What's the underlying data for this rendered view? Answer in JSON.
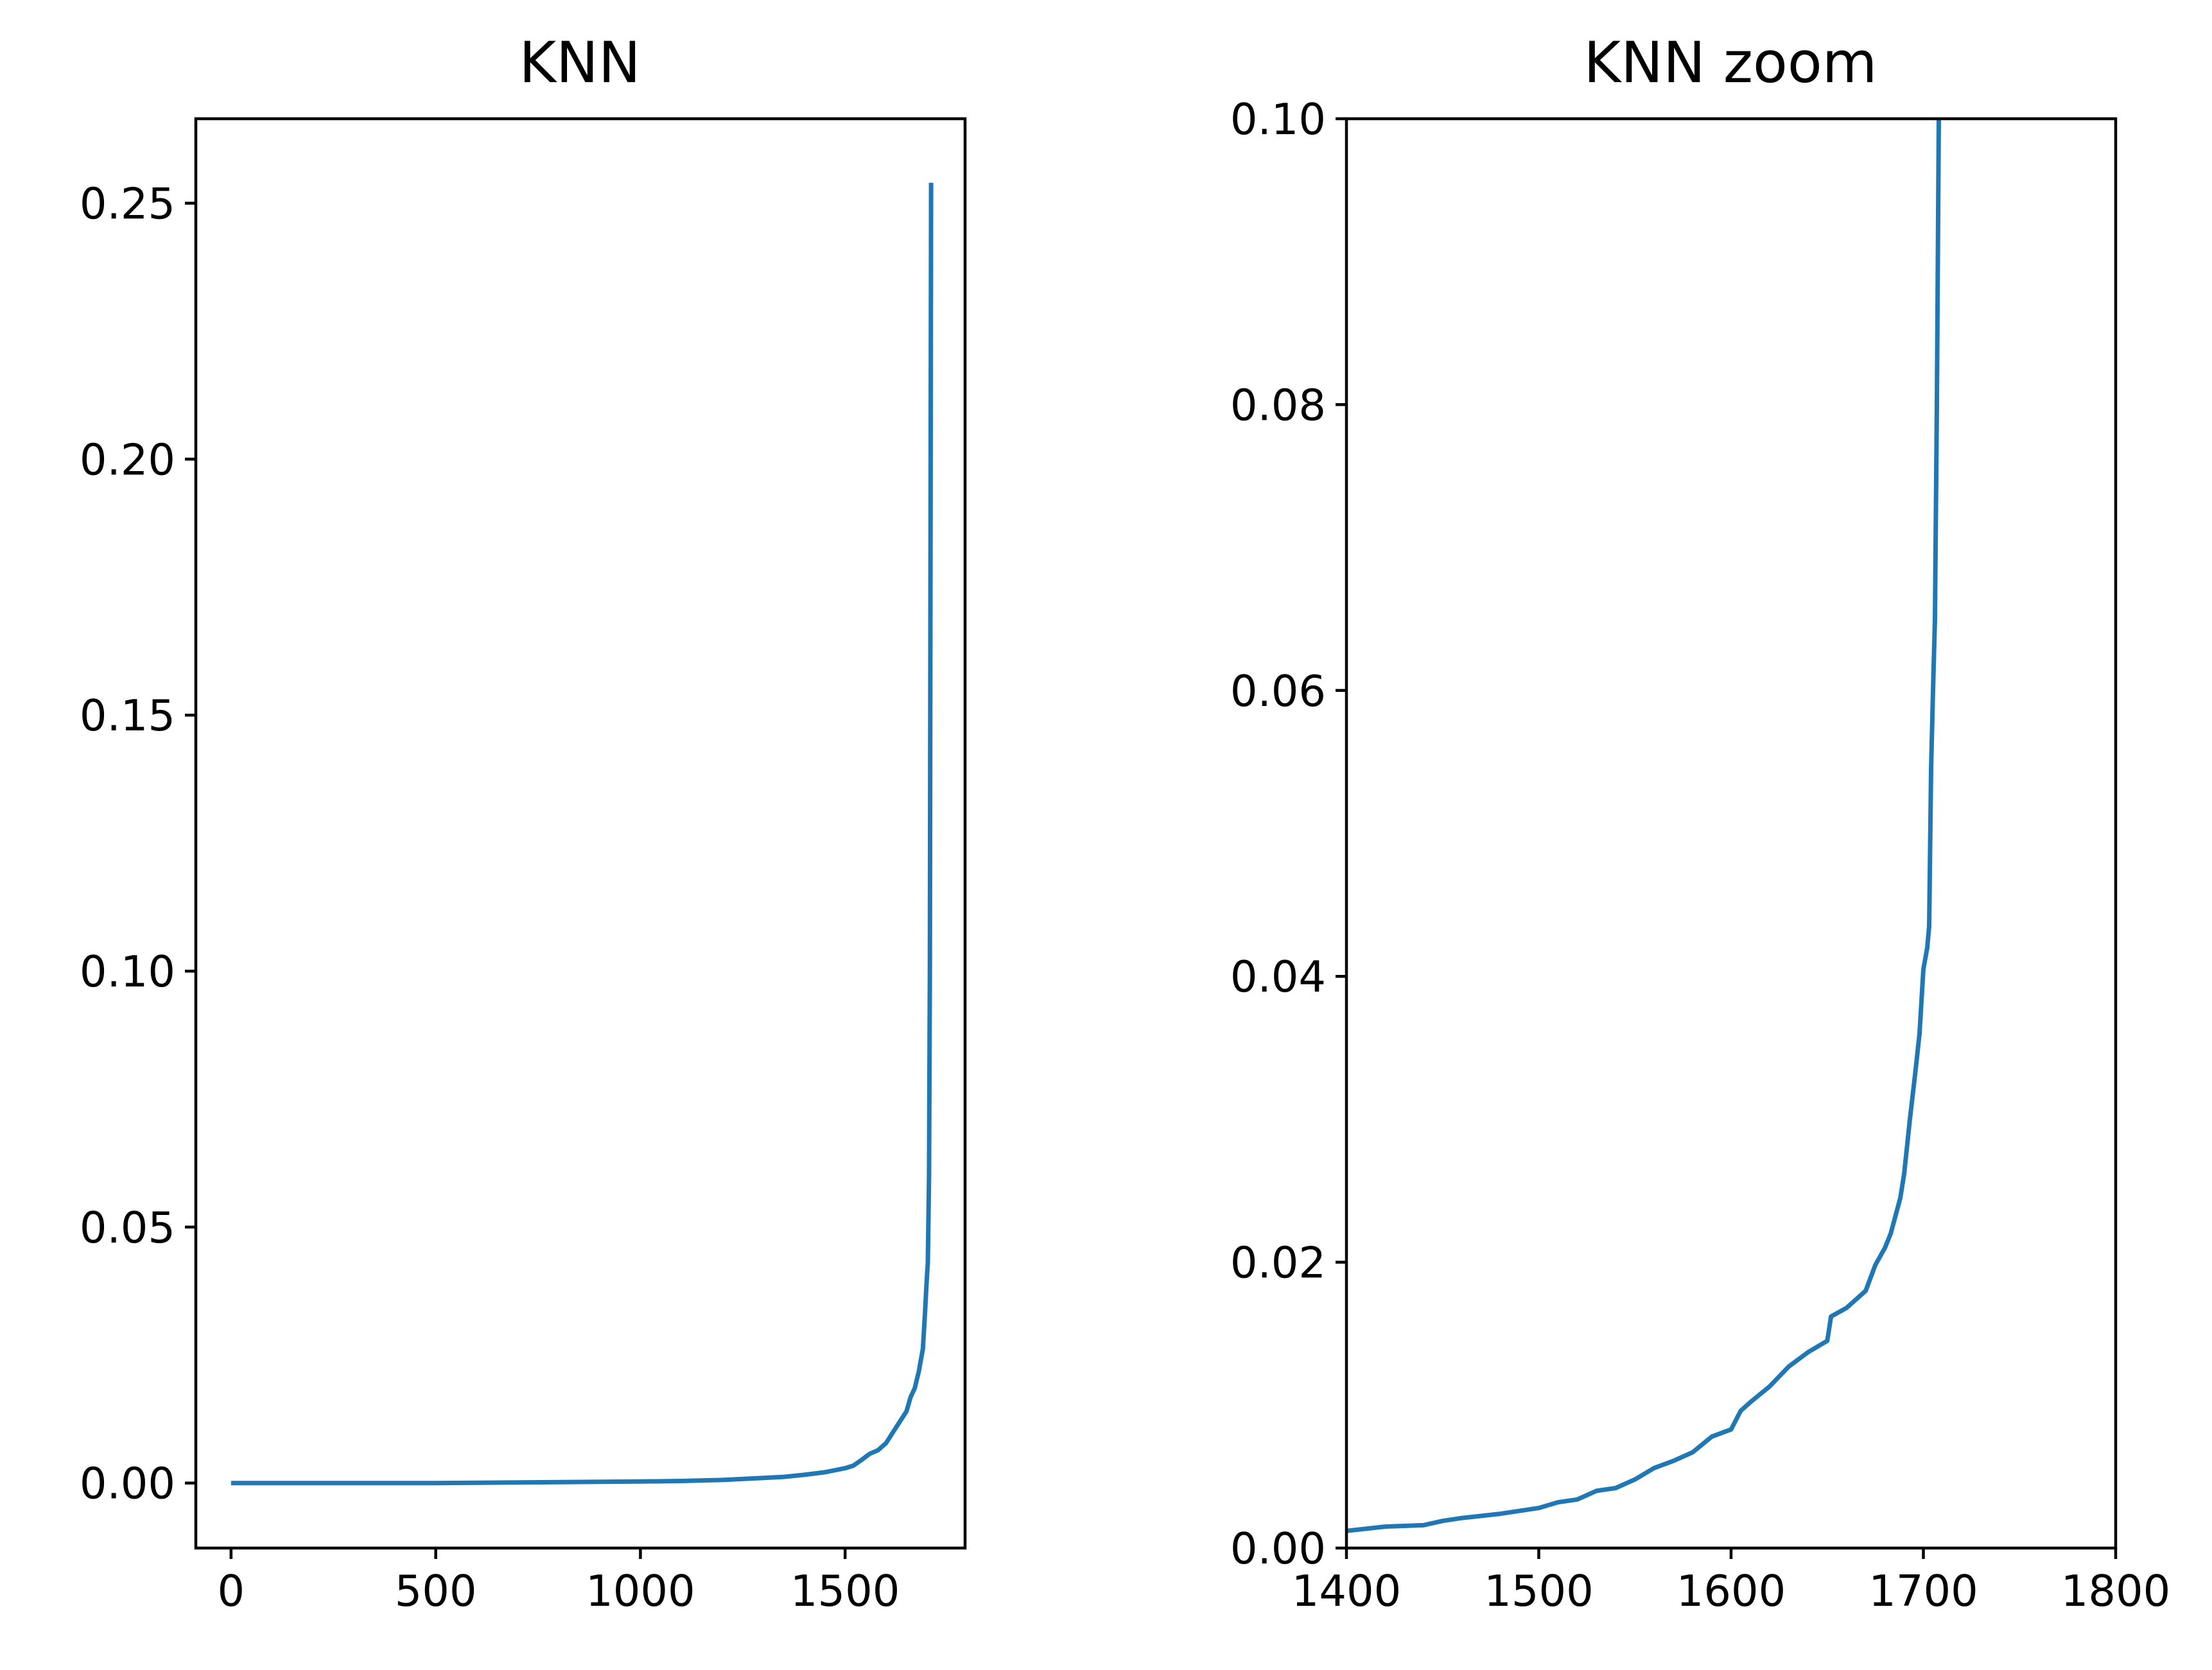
{
  "chart_data": [
    {
      "type": "line",
      "title": "KNN",
      "xlabel": "",
      "ylabel": "",
      "xlim": [
        -86,
        1793
      ],
      "ylim": [
        -0.0127,
        0.2665
      ],
      "x_ticks": [
        0,
        500,
        1000,
        1500
      ],
      "x_tick_labels": [
        "0",
        "500",
        "1000",
        "1500"
      ],
      "y_ticks": [
        0.0,
        0.05,
        0.1,
        0.15,
        0.2,
        0.25
      ],
      "y_tick_labels": [
        "0.00",
        "0.05",
        "0.10",
        "0.15",
        "0.20",
        "0.25"
      ],
      "grid": false,
      "color": "#1f77b4",
      "series": [
        {
          "x": [
            0,
            500,
            1000,
            1100,
            1200,
            1300,
            1350,
            1400,
            1450,
            1500,
            1520,
            1540,
            1560,
            1580,
            1600,
            1620,
            1640,
            1650,
            1660,
            1670,
            1680,
            1685,
            1690,
            1695,
            1698,
            1700,
            1702,
            1704,
            1705,
            1706,
            1707,
            1708,
            1709,
            1710
          ],
          "y": [
            0.0,
            0.0,
            0.0003,
            0.0004,
            0.0006,
            0.001,
            0.0012,
            0.0016,
            0.0021,
            0.0029,
            0.0034,
            0.0045,
            0.0057,
            0.0064,
            0.0078,
            0.0103,
            0.0128,
            0.014,
            0.0168,
            0.0185,
            0.0218,
            0.024,
            0.0262,
            0.033,
            0.0375,
            0.0405,
            0.043,
            0.0545,
            0.06,
            0.08,
            0.1,
            0.15,
            0.2,
            0.254
          ]
        }
      ]
    },
    {
      "type": "line",
      "title": "KNN zoom",
      "xlabel": "",
      "ylabel": "",
      "xlim": [
        1400,
        1800
      ],
      "ylim": [
        0.0,
        0.1
      ],
      "x_ticks": [
        1400,
        1500,
        1600,
        1700,
        1800
      ],
      "x_tick_labels": [
        "1400",
        "1500",
        "1600",
        "1700",
        "1800"
      ],
      "y_ticks": [
        0.0,
        0.02,
        0.04,
        0.06,
        0.08,
        0.1
      ],
      "y_tick_labels": [
        "0.00",
        "0.02",
        "0.04",
        "0.06",
        "0.08",
        "0.10"
      ],
      "grid": false,
      "color": "#1f77b4",
      "series": [
        {
          "x": [
            1400,
            1420,
            1440,
            1450,
            1460,
            1480,
            1500,
            1510,
            1520,
            1530,
            1540,
            1550,
            1560,
            1570,
            1580,
            1590,
            1600,
            1605,
            1610,
            1620,
            1630,
            1640,
            1650,
            1652,
            1660,
            1670,
            1675,
            1680,
            1683,
            1688,
            1690,
            1693,
            1696,
            1698,
            1700,
            1702,
            1703,
            1704,
            1705,
            1706,
            1707,
            1708
          ],
          "y": [
            0.0012,
            0.0015,
            0.0016,
            0.0019,
            0.0021,
            0.0024,
            0.0028,
            0.0032,
            0.0034,
            0.004,
            0.0042,
            0.0048,
            0.0056,
            0.0061,
            0.0067,
            0.0078,
            0.0083,
            0.0096,
            0.0102,
            0.0113,
            0.0127,
            0.0137,
            0.0145,
            0.0162,
            0.0168,
            0.018,
            0.0198,
            0.021,
            0.022,
            0.0245,
            0.0262,
            0.03,
            0.0335,
            0.036,
            0.0405,
            0.042,
            0.0435,
            0.0545,
            0.06,
            0.065,
            0.08,
            0.1
          ]
        }
      ]
    }
  ]
}
